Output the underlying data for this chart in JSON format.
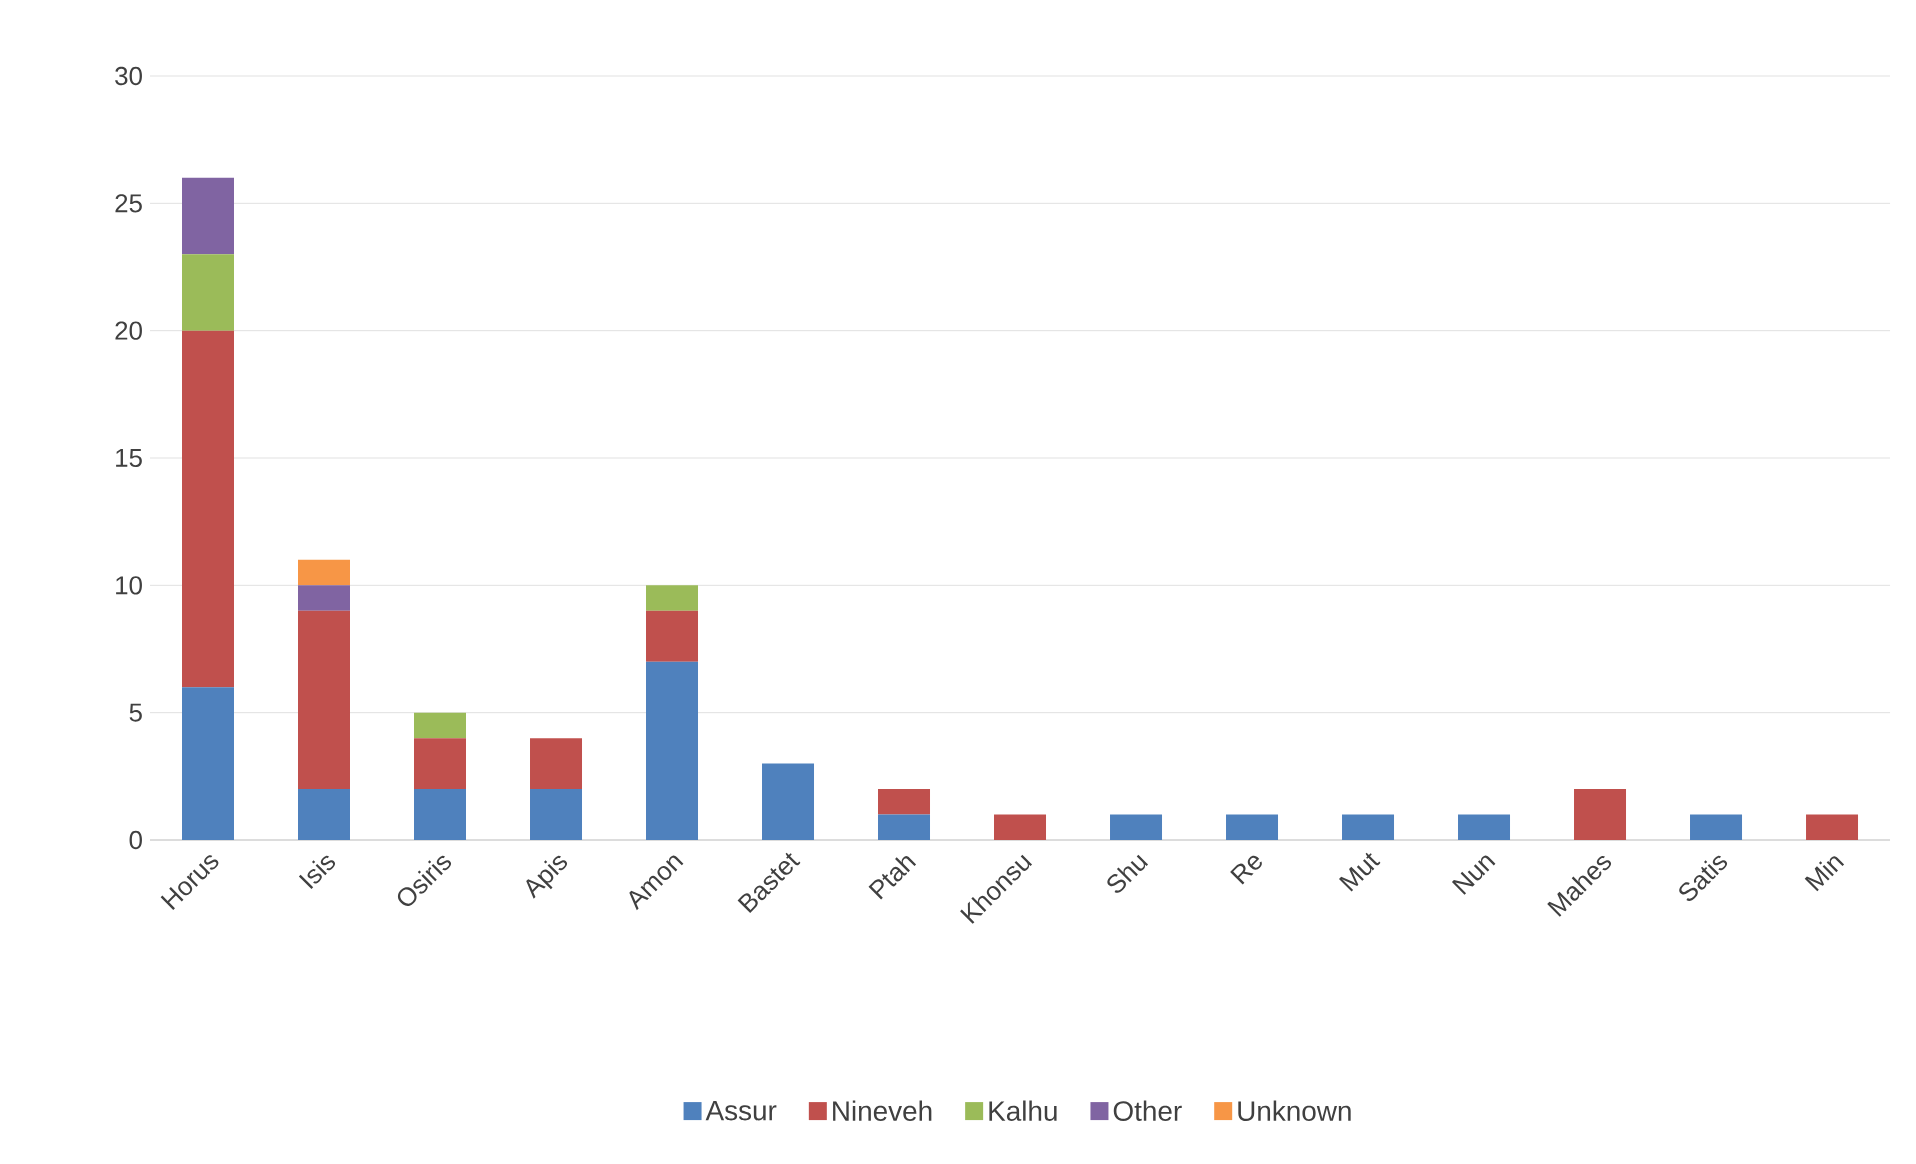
{
  "chart_data": {
    "type": "bar",
    "stacked": true,
    "categories": [
      "Horus",
      "Isis",
      "Osiris",
      "Apis",
      "Amon",
      "Bastet",
      "Ptah",
      "Khonsu",
      "Shu",
      "Re",
      "Mut",
      "Nun",
      "Mahes",
      "Satis",
      "Min"
    ],
    "series": [
      {
        "name": "Assur",
        "color": "#4f81bd",
        "values": [
          6,
          2,
          2,
          2,
          7,
          3,
          1,
          0,
          1,
          1,
          1,
          1,
          0,
          1,
          0
        ]
      },
      {
        "name": "Nineveh",
        "color": "#c0504d",
        "values": [
          14,
          7,
          2,
          2,
          2,
          0,
          1,
          1,
          0,
          0,
          0,
          0,
          2,
          0,
          1
        ]
      },
      {
        "name": "Kalhu",
        "color": "#9bbb59",
        "values": [
          3,
          0,
          1,
          0,
          1,
          0,
          0,
          0,
          0,
          0,
          0,
          0,
          0,
          0,
          0
        ]
      },
      {
        "name": "Other",
        "color": "#8064a2",
        "values": [
          3,
          1,
          0,
          0,
          0,
          0,
          0,
          0,
          0,
          0,
          0,
          0,
          0,
          0,
          0
        ]
      },
      {
        "name": "Unknown",
        "color": "#f79646",
        "values": [
          0,
          1,
          0,
          0,
          0,
          0,
          0,
          0,
          0,
          0,
          0,
          0,
          0,
          0,
          0
        ]
      }
    ],
    "ylim": [
      0,
      30
    ],
    "yticks": [
      0,
      5,
      10,
      15,
      20,
      25,
      30
    ],
    "grid": "y",
    "legend": "bottom"
  }
}
